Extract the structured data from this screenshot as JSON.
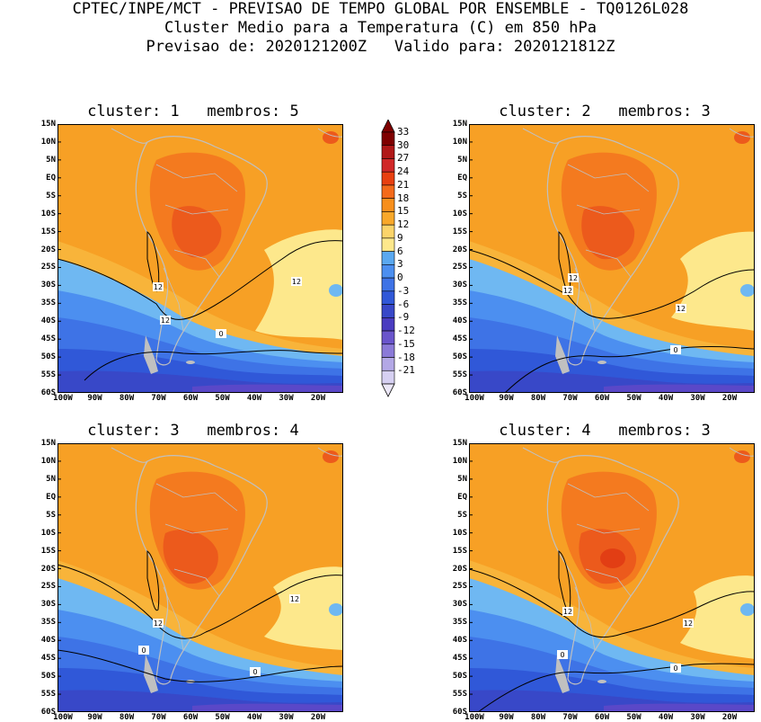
{
  "header": {
    "line1": "CPTEC/INPE/MCT - PREVISAO DE TEMPO GLOBAL POR ENSEMBLE - TQ0126L028",
    "line2": "Cluster Medio para a Temperatura (C) em 850 hPa",
    "line3": "Previsao de: 2020121200Z   Valido para: 2020121812Z"
  },
  "axes": {
    "lat_ticks": [
      "15N",
      "10N",
      "5N",
      "EQ",
      "5S",
      "10S",
      "15S",
      "20S",
      "25S",
      "30S",
      "35S",
      "40S",
      "45S",
      "50S",
      "55S",
      "60S"
    ],
    "lon_ticks": [
      "100W",
      "90W",
      "80W",
      "70W",
      "60W",
      "50W",
      "40W",
      "30W",
      "20W"
    ]
  },
  "colorbar": {
    "labels": [
      "33",
      "30",
      "27",
      "24",
      "21",
      "18",
      "15",
      "12",
      "9",
      "6",
      "3",
      "0",
      "-3",
      "-6",
      "-9",
      "-12",
      "-15",
      "-18",
      "-21"
    ],
    "colors": [
      "#7f0000",
      "#b01818",
      "#d02828",
      "#e84010",
      "#f46a1a",
      "#f78f1c",
      "#f8a82a",
      "#fbd46a",
      "#fde88c",
      "#5aa8f0",
      "#4c8ff0",
      "#3e73e6",
      "#3058d8",
      "#3848c8",
      "#4a3cc0",
      "#6a55cc",
      "#8b7ad8",
      "#b3a8e6",
      "#d6d0f2"
    ]
  },
  "panels": [
    {
      "title": "cluster: 1   membros: 5",
      "contour_labels": [
        "12",
        "12",
        "12",
        "0"
      ]
    },
    {
      "title": "cluster: 2   membros: 3",
      "contour_labels": [
        "12",
        "12",
        "12",
        "0"
      ]
    },
    {
      "title": "cluster: 3   membros: 4",
      "contour_labels": [
        "12",
        "12",
        "0",
        "0"
      ]
    },
    {
      "title": "cluster: 4   membros: 3",
      "contour_labels": [
        "12",
        "12",
        "0",
        "0"
      ]
    }
  ]
}
